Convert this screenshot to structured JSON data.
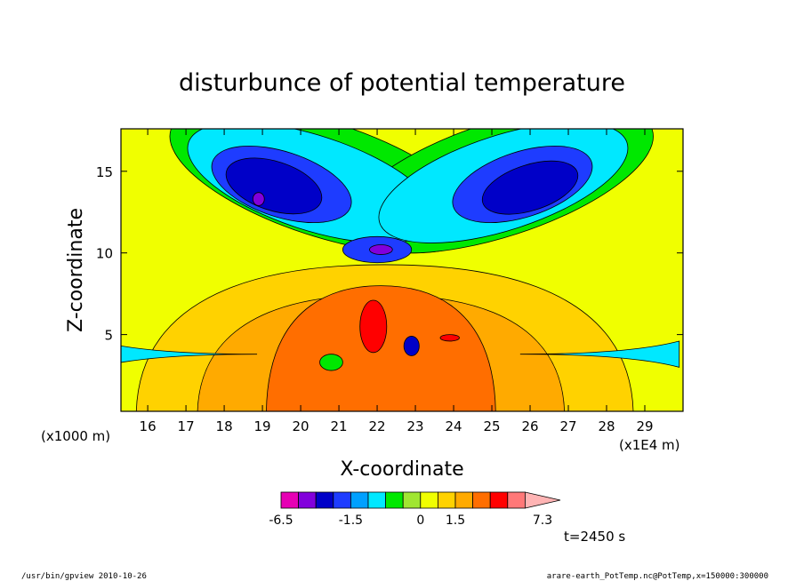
{
  "chart_data": {
    "type": "heatmap",
    "title": "disturbunce of potential temperature",
    "xlabel": "X-coordinate",
    "ylabel": "Z-coordinate",
    "x_units": "(x1E4 m)",
    "y_units": "(x1000 m)",
    "xlim": [
      15.3,
      30.0
    ],
    "ylim": [
      0.3,
      17.6
    ],
    "x_ticks": [
      "16",
      "17",
      "18",
      "19",
      "20",
      "21",
      "22",
      "23",
      "24",
      "25",
      "26",
      "27",
      "28",
      "29"
    ],
    "y_ticks": [
      "5",
      "10",
      "15"
    ],
    "background_level_color": "#f0ff00",
    "fields": [
      {
        "level": "-0.75",
        "color": "#00e800",
        "shape": "upper-left-lobe",
        "x": 20.6,
        "z": 14.5,
        "rx": 4.2,
        "rz": 3.5
      },
      {
        "level": "-0.75",
        "color": "#00e800",
        "shape": "upper-right-lobe",
        "x": 25.2,
        "z": 14.5,
        "rx": 4.2,
        "rz": 3.5
      },
      {
        "level": "-1.0",
        "color": "#00e8ff",
        "shape": "upper-left-lobe",
        "x": 20.3,
        "z": 14.3,
        "rx": 3.4,
        "rz": 2.9
      },
      {
        "level": "-1.0",
        "color": "#00e8ff",
        "shape": "upper-right-lobe",
        "x": 25.3,
        "z": 14.3,
        "rx": 3.4,
        "rz": 2.9
      },
      {
        "level": "-1.5",
        "color": "#1e3cff",
        "shape": "upper-left-core",
        "x": 19.5,
        "z": 14.2,
        "rx": 1.9,
        "rz": 2.0
      },
      {
        "level": "-1.5",
        "color": "#1e3cff",
        "shape": "upper-right-core",
        "x": 25.8,
        "z": 14.2,
        "rx": 1.9,
        "rz": 2.0
      },
      {
        "level": "-2.5",
        "color": "#0000c8",
        "shape": "upper-left-core",
        "x": 19.3,
        "z": 14.1,
        "rx": 1.3,
        "rz": 1.5
      },
      {
        "level": "-2.5",
        "color": "#0000c8",
        "shape": "upper-right-core",
        "x": 26.0,
        "z": 14.0,
        "rx": 1.3,
        "rz": 1.4
      },
      {
        "level": "-4.0",
        "color": "#8200dc",
        "shape": "dot",
        "x": 18.9,
        "z": 13.3,
        "rx": 0.15,
        "rz": 0.4
      },
      {
        "level": "-1.5",
        "color": "#1e3cff",
        "shape": "neck",
        "x": 22.0,
        "z": 10.2,
        "rx": 0.9,
        "rz": 0.8
      },
      {
        "level": "-4.0",
        "color": "#8200dc",
        "shape": "neck-core",
        "x": 22.1,
        "z": 10.2,
        "rx": 0.3,
        "rz": 0.3
      },
      {
        "level": "1.5",
        "color": "#ffd200",
        "shape": "lower-dome",
        "x": 22.2,
        "z": 5.5,
        "rx": 6.5,
        "rz": 3.6
      },
      {
        "level": "2.0",
        "color": "#ffaa00",
        "shape": "lower-dome",
        "x": 22.1,
        "z": 4.5,
        "rx": 4.8,
        "rz": 2.8
      },
      {
        "level": "3.0",
        "color": "#ff6e00",
        "shape": "lower-core",
        "x": 22.1,
        "z": 4.0,
        "rx": 3.0,
        "rz": 3.8
      },
      {
        "level": "5.0",
        "color": "#ff0000",
        "shape": "plume",
        "x": 21.9,
        "z": 5.5,
        "rx": 0.35,
        "rz": 1.6
      },
      {
        "level": "5.0",
        "color": "#ff0000",
        "shape": "dot",
        "x": 23.9,
        "z": 4.8,
        "rx": 0.25,
        "rz": 0.2
      },
      {
        "level": "-1.0",
        "color": "#00e8ff",
        "shape": "left-wedge",
        "x": 16.0,
        "z": 3.8,
        "rx": 1.3,
        "rz": 0.4
      },
      {
        "level": "-1.0",
        "color": "#00e8ff",
        "shape": "right-wedge",
        "x": 28.6,
        "z": 3.8,
        "rx": 1.3,
        "rz": 0.4
      },
      {
        "level": "-0.75",
        "color": "#00e800",
        "shape": "dot",
        "x": 20.8,
        "z": 3.3,
        "rx": 0.3,
        "rz": 0.5
      },
      {
        "level": "-2.5",
        "color": "#0000c8",
        "shape": "dot",
        "x": 22.9,
        "z": 4.3,
        "rx": 0.2,
        "rz": 0.6
      }
    ],
    "colorbar": {
      "labels": [
        "-6.5",
        "-1.5",
        "0",
        "1.5",
        "7.3"
      ],
      "colors": [
        "#e600b4",
        "#8200dc",
        "#0000c8",
        "#1e3cff",
        "#00a0ff",
        "#00e8ff",
        "#00e800",
        "#a0e632",
        "#f0ff00",
        "#ffd200",
        "#ffaa00",
        "#ff6e00",
        "#ff0000",
        "#ff7878",
        "#ffb4b4"
      ],
      "bounds": [
        -6.5,
        -4.0,
        -2.5,
        -2.0,
        -1.5,
        -1.0,
        -0.75,
        -0.5,
        0.0,
        0.5,
        1.5,
        2.0,
        3.0,
        5.0,
        6.0,
        7.3
      ]
    }
  },
  "time_label": "t=2450 s",
  "footer": {
    "left": "/usr/bin/gpview  2010-10-26",
    "right": "arare-earth_PotTemp.nc@PotTemp,x=150000:300000"
  }
}
